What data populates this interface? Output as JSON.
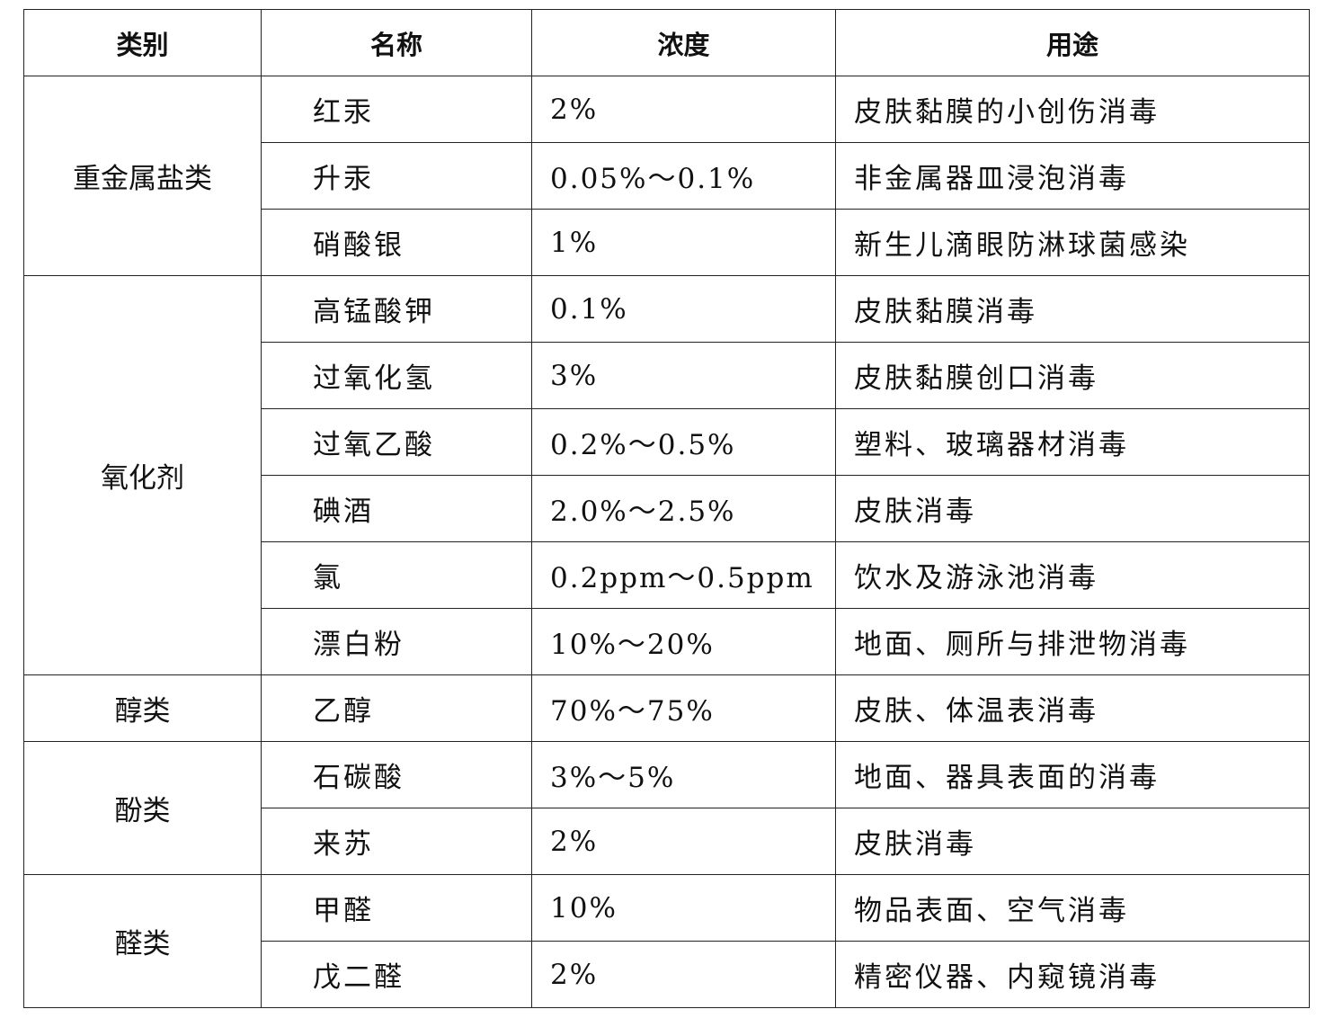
{
  "headers": [
    "类别",
    "名称",
    "浓度",
    "用途"
  ],
  "groups": [
    {
      "category": "重金属盐类",
      "rows": [
        {
          "name": "红汞",
          "concentration": "2%",
          "use": "皮肤黏膜的小创伤消毒"
        },
        {
          "name": "升汞",
          "concentration": "0.05%～0.1%",
          "use": "非金属器皿浸泡消毒"
        },
        {
          "name": "硝酸银",
          "concentration": "1%",
          "use": "新生儿滴眼防淋球菌感染"
        }
      ]
    },
    {
      "category": "氧化剂",
      "rows": [
        {
          "name": "高锰酸钾",
          "concentration": "0.1%",
          "use": "皮肤黏膜消毒"
        },
        {
          "name": "过氧化氢",
          "concentration": "3%",
          "use": "皮肤黏膜创口消毒"
        },
        {
          "name": "过氧乙酸",
          "concentration": "0.2%～0.5%",
          "use": "塑料、玻璃器材消毒"
        },
        {
          "name": "碘酒",
          "concentration": "2.0%～2.5%",
          "use": "皮肤消毒"
        },
        {
          "name": "氯",
          "concentration": "0.2ppm～0.5ppm",
          "use": "饮水及游泳池消毒"
        },
        {
          "name": "漂白粉",
          "concentration": "10%～20%",
          "use": "地面、厕所与排泄物消毒"
        }
      ]
    },
    {
      "category": "醇类",
      "rows": [
        {
          "name": "乙醇",
          "concentration": "70%～75%",
          "use": "皮肤、体温表消毒"
        }
      ]
    },
    {
      "category": "酚类",
      "rows": [
        {
          "name": "石碳酸",
          "concentration": "3%～5%",
          "use": "地面、器具表面的消毒"
        },
        {
          "name": "来苏",
          "concentration": "2%",
          "use": "皮肤消毒"
        }
      ]
    },
    {
      "category": "醛类",
      "rows": [
        {
          "name": "甲醛",
          "concentration": "10%",
          "use": "物品表面、空气消毒"
        },
        {
          "name": "戊二醛",
          "concentration": "2%",
          "use": "精密仪器、内窥镜消毒"
        }
      ]
    }
  ]
}
